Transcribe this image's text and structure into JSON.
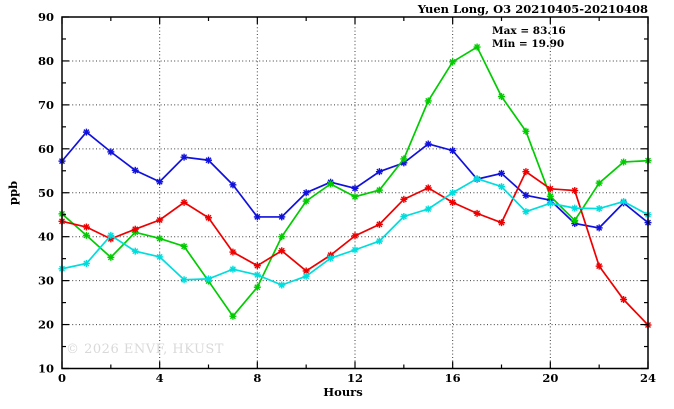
{
  "title": "Yuen Long, O3 20210405-20210408",
  "annotation": {
    "max_label": "Max = 83.16",
    "min_label": "Min = 19.90"
  },
  "watermark": "© 2026 ENVF, HKUST",
  "chart_data": {
    "type": "line",
    "title": "Yuen Long, O3 20210405-20210408",
    "xlabel": "Hours",
    "ylabel": "ppb",
    "xlim": [
      0,
      24
    ],
    "ylim": [
      10,
      90
    ],
    "x_major_ticks": [
      0,
      4,
      8,
      12,
      16,
      20,
      24
    ],
    "x_minor_ticks": [
      2,
      6,
      10,
      14,
      18,
      22
    ],
    "y_major_ticks": [
      10,
      20,
      30,
      40,
      50,
      60,
      70,
      80,
      90
    ],
    "y_minor_ticks": [
      15,
      25,
      35,
      45,
      55,
      65,
      75,
      85
    ],
    "grid": "dotted lines at major ticks, mirrored inward ticks on all four borders",
    "legend": "none",
    "marker": "star",
    "max_value": 83.16,
    "min_value": 19.9,
    "x": [
      0,
      1,
      2,
      3,
      4,
      5,
      6,
      7,
      8,
      9,
      10,
      11,
      12,
      13,
      14,
      15,
      16,
      17,
      18,
      19,
      20,
      21,
      22,
      23,
      24
    ],
    "series": [
      {
        "name": "series-blue",
        "color": "#1111dd",
        "values": [
          57.2,
          63.8,
          59.3,
          55.1,
          52.5,
          58.1,
          57.4,
          51.8,
          44.5,
          44.5,
          50.0,
          52.4,
          51.0,
          54.8,
          56.8,
          61.1,
          59.6,
          53.1,
          54.4,
          49.4,
          48.3,
          43.0,
          42.0,
          47.7,
          43.2
        ]
      },
      {
        "name": "series-green",
        "color": "#00cc00",
        "values": [
          45.2,
          40.3,
          35.3,
          41.0,
          39.6,
          37.8,
          29.9,
          21.9,
          28.5,
          40.0,
          48.1,
          52.0,
          49.1,
          50.6,
          57.7,
          70.9,
          79.8,
          83.16,
          71.9,
          64.0,
          49.2,
          43.7,
          52.2,
          57.0,
          57.3
        ]
      },
      {
        "name": "series-red",
        "color": "#ee0000",
        "values": [
          43.5,
          42.2,
          39.5,
          41.7,
          43.8,
          47.8,
          44.3,
          36.5,
          33.4,
          36.8,
          32.2,
          35.8,
          40.2,
          42.8,
          48.5,
          51.1,
          47.8,
          45.3,
          43.2,
          54.8,
          50.9,
          50.5,
          33.3,
          25.7,
          19.9
        ]
      },
      {
        "name": "series-cyan",
        "color": "#00dddd",
        "values": [
          32.7,
          33.9,
          40.3,
          36.7,
          35.4,
          30.2,
          30.4,
          32.6,
          31.3,
          29.0,
          31.0,
          35.1,
          37.0,
          39.0,
          44.6,
          46.3,
          50.0,
          53.2,
          51.4,
          45.7,
          47.6,
          46.5,
          46.4,
          48.0,
          45.0
        ]
      }
    ]
  }
}
